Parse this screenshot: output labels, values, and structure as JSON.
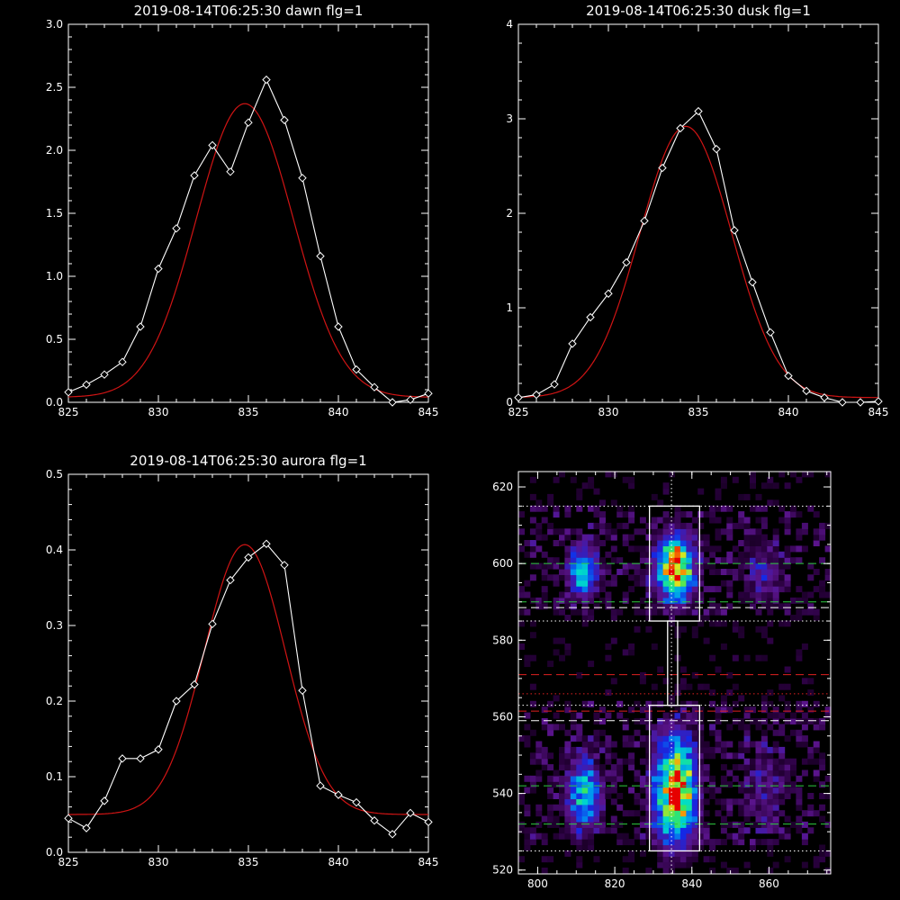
{
  "colors": {
    "background": "#000000",
    "axes": "#ffffff",
    "data": "#ffffff",
    "fit": "#d01414",
    "green_line": "#2ecc40",
    "red_line": "#e02020",
    "white_dash": "#ffffff"
  },
  "chart_data": [
    {
      "type": "line",
      "title": "2019-08-14T06:25:30 dawn flg=1",
      "xlim": [
        825,
        845
      ],
      "ylim": [
        0,
        3.0
      ],
      "xticks": [
        "825",
        "830",
        "835",
        "840",
        "845"
      ],
      "xtick_values": [
        825,
        830,
        835,
        840,
        845
      ],
      "yticks": [
        "0.0",
        "0.5",
        "1.0",
        "1.5",
        "2.0",
        "2.5",
        "3.0"
      ],
      "ytick_values": [
        0,
        0.5,
        1.0,
        1.5,
        2.0,
        2.5,
        3.0
      ],
      "series": [
        {
          "marker": "diamond",
          "x": [
            825,
            826,
            827,
            828,
            829,
            830,
            831,
            832,
            833,
            834,
            835,
            836,
            837,
            838,
            839,
            840,
            841,
            842,
            843,
            844,
            845
          ],
          "y": [
            0.08,
            0.14,
            0.22,
            0.32,
            0.6,
            1.06,
            1.38,
            1.8,
            2.04,
            1.83,
            2.22,
            2.56,
            2.24,
            1.78,
            1.16,
            0.6,
            0.26,
            0.12,
            0.0,
            0.02,
            0.07
          ]
        }
      ],
      "fit": {
        "amplitude": 2.33,
        "center": 834.8,
        "sigma": 2.7,
        "offset": 0.04
      }
    },
    {
      "type": "line",
      "title": "2019-08-14T06:25:30 dusk flg=1",
      "xlim": [
        825,
        845
      ],
      "ylim": [
        0,
        4
      ],
      "xticks": [
        "825",
        "830",
        "835",
        "840",
        "845"
      ],
      "xtick_values": [
        825,
        830,
        835,
        840,
        845
      ],
      "yticks": [
        "0",
        "1",
        "2",
        "3",
        "4"
      ],
      "ytick_values": [
        0,
        1,
        2,
        3,
        4
      ],
      "series": [
        {
          "marker": "diamond",
          "x": [
            825,
            826,
            827,
            828,
            829,
            830,
            831,
            832,
            833,
            834,
            835,
            836,
            837,
            838,
            839,
            840,
            841,
            842,
            843,
            844,
            845
          ],
          "y": [
            0.05,
            0.08,
            0.19,
            0.62,
            0.9,
            1.15,
            1.48,
            1.92,
            2.48,
            2.9,
            3.08,
            2.68,
            1.82,
            1.27,
            0.74,
            0.28,
            0.12,
            0.05,
            0.0,
            0.0,
            0.01
          ]
        }
      ],
      "fit": {
        "amplitude": 2.87,
        "center": 834.3,
        "sigma": 2.55,
        "offset": 0.05
      }
    },
    {
      "type": "line",
      "title": "2019-08-14T06:25:30 aurora flg=1",
      "xlim": [
        825,
        845
      ],
      "ylim": [
        0,
        0.5
      ],
      "xticks": [
        "825",
        "830",
        "835",
        "840",
        "845"
      ],
      "xtick_values": [
        825,
        830,
        835,
        840,
        845
      ],
      "yticks": [
        "0.0",
        "0.1",
        "0.2",
        "0.3",
        "0.4",
        "0.5"
      ],
      "ytick_values": [
        0,
        0.1,
        0.2,
        0.3,
        0.4,
        0.5
      ],
      "series": [
        {
          "marker": "diamond",
          "x": [
            825,
            826,
            827,
            828,
            829,
            830,
            831,
            832,
            833,
            834,
            835,
            836,
            837,
            838,
            839,
            840,
            841,
            842,
            843,
            844,
            845
          ],
          "y": [
            0.045,
            0.032,
            0.068,
            0.124,
            0.124,
            0.136,
            0.2,
            0.222,
            0.302,
            0.36,
            0.39,
            0.408,
            0.38,
            0.214,
            0.088,
            0.076,
            0.066,
            0.042,
            0.024,
            0.052,
            0.04
          ]
        }
      ],
      "fit": {
        "amplitude": 0.357,
        "center": 834.8,
        "sigma": 2.25,
        "offset": 0.05
      }
    },
    {
      "type": "heatmap",
      "title": "",
      "xlim": [
        795,
        876
      ],
      "ylim": [
        519,
        624
      ],
      "xticks": [
        "800",
        "820",
        "840",
        "860"
      ],
      "xtick_values": [
        800,
        820,
        840,
        860
      ],
      "yticks": [
        "520",
        "540",
        "560",
        "580",
        "600",
        "620"
      ],
      "ytick_values": [
        520,
        540,
        560,
        580,
        600,
        620
      ],
      "cell_size": 1.5,
      "blobs": [
        {
          "x": 811,
          "y": 597,
          "sx": 2.5,
          "sy": 4.5,
          "peak": 0.55
        },
        {
          "x": 835,
          "y": 598,
          "sx": 3.2,
          "sy": 5.5,
          "peak": 0.95
        },
        {
          "x": 811,
          "y": 539,
          "sx": 2.8,
          "sy": 6,
          "peak": 0.55
        },
        {
          "x": 835,
          "y": 540,
          "sx": 3.5,
          "sy": 9,
          "peak": 1.0
        },
        {
          "x": 858,
          "y": 596,
          "sx": 3.5,
          "sy": 6,
          "peak": 0.18
        },
        {
          "x": 858,
          "y": 540,
          "sx": 3.5,
          "sy": 8,
          "peak": 0.15
        }
      ],
      "boxes": [
        {
          "x0": 829,
          "x1": 842,
          "y0": 585,
          "y1": 615
        },
        {
          "x0": 829,
          "x1": 842,
          "y0": 525,
          "y1": 563
        },
        {
          "x0": 833.7,
          "x1": 836.3,
          "y0": 563,
          "y1": 585
        }
      ],
      "hlines": [
        {
          "y": 615,
          "style": "dotted",
          "color": "white"
        },
        {
          "y": 600,
          "style": "dashed",
          "color": "green"
        },
        {
          "y": 590,
          "style": "dashed",
          "color": "green"
        },
        {
          "y": 588.5,
          "style": "dashed",
          "color": "white"
        },
        {
          "y": 585,
          "style": "dotted",
          "color": "white"
        },
        {
          "y": 571,
          "style": "dashed",
          "color": "red"
        },
        {
          "y": 566,
          "style": "dotted",
          "color": "red"
        },
        {
          "y": 563,
          "style": "dotted",
          "color": "white"
        },
        {
          "y": 561.5,
          "style": "dashed",
          "color": "red"
        },
        {
          "y": 559,
          "style": "dashed",
          "color": "white"
        },
        {
          "y": 542,
          "style": "dashed",
          "color": "green"
        },
        {
          "y": 532,
          "style": "dashed",
          "color": "green"
        },
        {
          "y": 525,
          "style": "dotted",
          "color": "white"
        }
      ],
      "vlines": [
        {
          "x": 834.7,
          "style": "dotted",
          "color": "white"
        }
      ]
    }
  ]
}
